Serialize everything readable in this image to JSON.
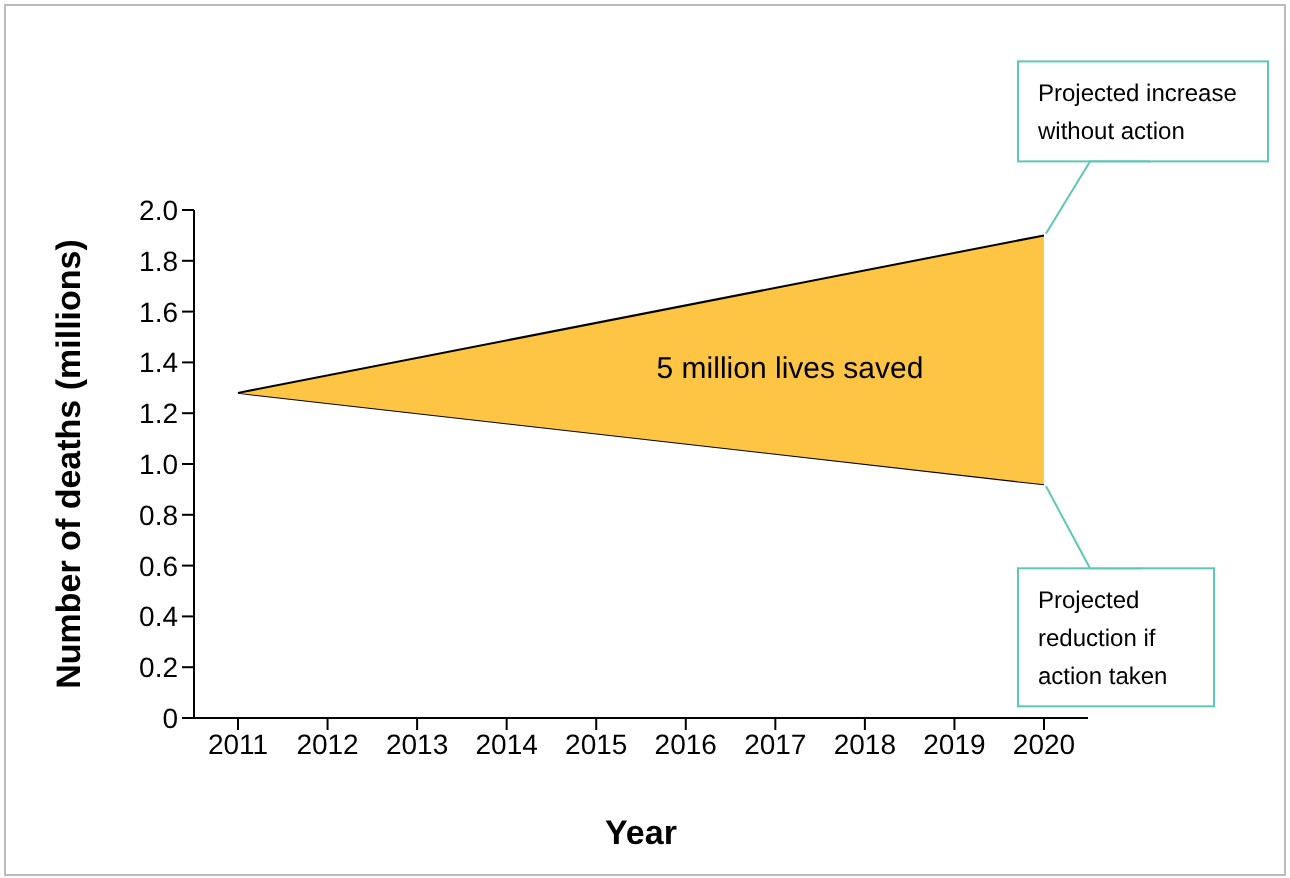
{
  "chart_data": {
    "type": "area",
    "stacked": true,
    "xlabel": "Year",
    "ylabel": "Number of deaths (millions)",
    "categories": [
      "2011",
      "2012",
      "2013",
      "2014",
      "2015",
      "2016",
      "2017",
      "2018",
      "2019",
      "2020"
    ],
    "series": [
      {
        "color": "#ffffff",
        "values": [
          1.28,
          null,
          null,
          null,
          null,
          null,
          null,
          null,
          null,
          0.92
        ]
      },
      {
        "color": "#fdc543",
        "values": [
          0,
          null,
          null,
          null,
          null,
          null,
          null,
          null,
          null,
          0.98
        ]
      }
    ],
    "ylim": [
      0,
      2.0
    ],
    "yticks": [
      {
        "value": 0,
        "label": "0"
      },
      {
        "value": 0.2,
        "label": "0.2"
      },
      {
        "value": 0.4,
        "label": "0.4"
      },
      {
        "value": 0.6,
        "label": "0.6"
      },
      {
        "value": 0.8,
        "label": "0.8"
      },
      {
        "value": 1.0,
        "label": "1.0"
      },
      {
        "value": 1.2,
        "label": "1.2"
      },
      {
        "value": 1.4,
        "label": "1.4"
      },
      {
        "value": 1.6,
        "label": "1.6"
      },
      {
        "value": 1.8,
        "label": "1.8"
      },
      {
        "value": 2.0,
        "label": "2.0"
      }
    ],
    "annotations": [
      "5 million lives saved",
      {
        "text": "Projected increase without action",
        "x": "2020",
        "y": 1.9
      },
      {
        "text": "Projected reduction if action taken",
        "x": "2020",
        "y": 0.92
      }
    ],
    "grid": false,
    "legend": false
  }
}
